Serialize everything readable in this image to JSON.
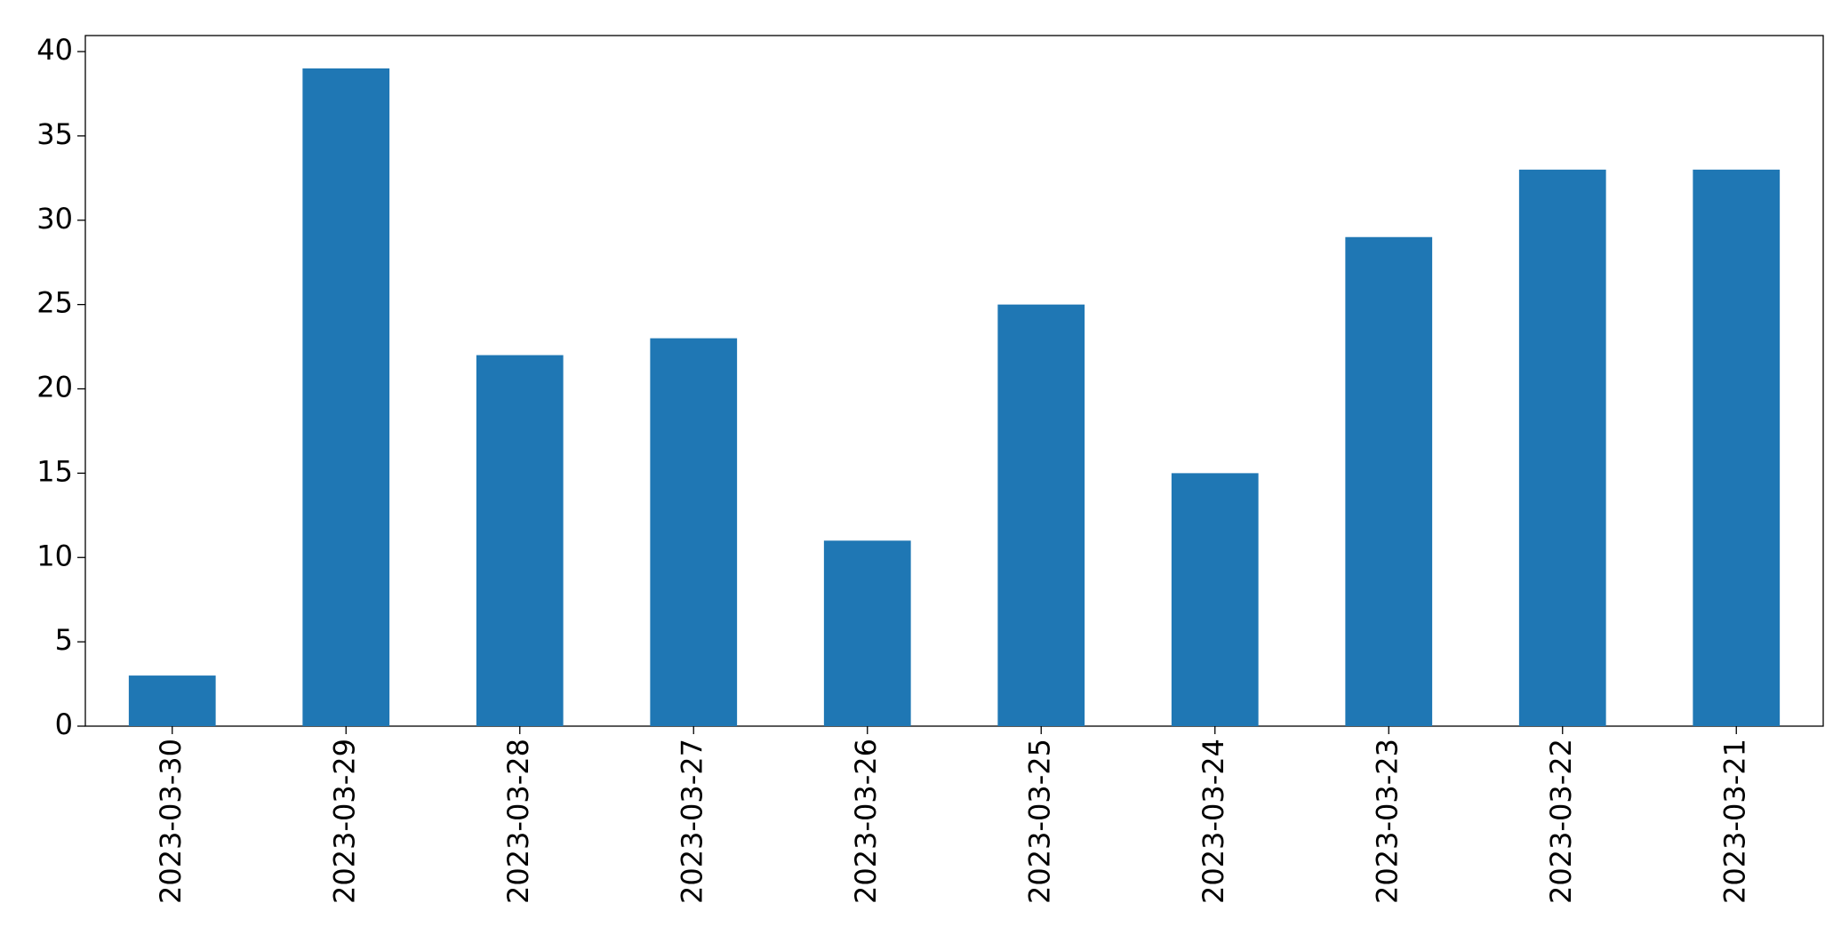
{
  "chart_data": {
    "type": "bar",
    "categories": [
      "2023-03-30",
      "2023-03-29",
      "2023-03-28",
      "2023-03-27",
      "2023-03-26",
      "2023-03-25",
      "2023-03-24",
      "2023-03-23",
      "2023-03-22",
      "2023-03-21"
    ],
    "values": [
      3,
      39,
      22,
      23,
      11,
      25,
      15,
      29,
      33,
      33
    ],
    "color": "#1f77b4",
    "ylim": [
      0,
      40.95
    ],
    "yticks": [
      0,
      5,
      10,
      15,
      20,
      25,
      30,
      35,
      40
    ],
    "grid": false
  }
}
